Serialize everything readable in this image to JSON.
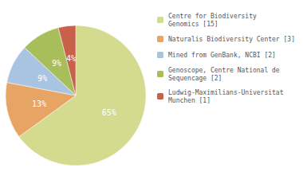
{
  "chart_data": {
    "type": "pie",
    "categories": [
      "Centre for Biodiversity\nGenomics [15]",
      "Naturalis Biodiversity Center [3]",
      "Mined from GenBank, NCBI [2]",
      "Genoscope, Centre National de\nSequencage [2]",
      "Ludwig-Maximilians-Universitat\nMunchen [1]"
    ],
    "values": [
      65,
      13,
      9,
      9,
      4
    ],
    "value_labels": [
      "65%",
      "13%",
      "9%",
      "9%",
      "4%"
    ],
    "colors": [
      "#d4db8e",
      "#e8a464",
      "#a8c4e0",
      "#a8be5a",
      "#c8604a"
    ],
    "data_labels": true,
    "legend": "right"
  }
}
